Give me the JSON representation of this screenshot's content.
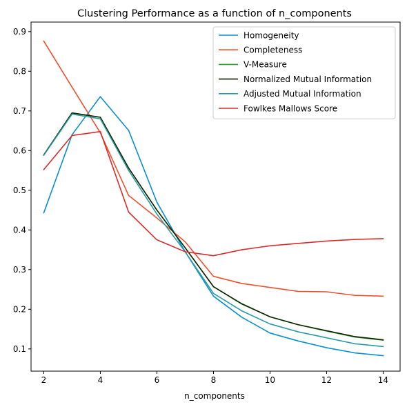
{
  "chart_data": {
    "type": "line",
    "title": "Clustering Performance as a function of n_components",
    "xlabel": "n_components",
    "ylabel": "",
    "x": [
      2,
      3,
      4,
      5,
      6,
      7,
      8,
      9,
      10,
      11,
      12,
      13,
      14
    ],
    "xlim": [
      1.55,
      14.6
    ],
    "ylim": [
      0.044,
      0.924
    ],
    "xticks": [
      2,
      4,
      6,
      8,
      10,
      12,
      14
    ],
    "yticks": [
      0.1,
      0.2,
      0.3,
      0.4,
      0.5,
      0.6,
      0.7,
      0.8,
      0.9
    ],
    "grid": false,
    "legend_position": "top-right",
    "series": [
      {
        "name": "Homogeneity",
        "color": "#0a8fd0",
        "values": [
          0.443,
          0.64,
          0.736,
          0.651,
          0.47,
          0.345,
          0.233,
          0.18,
          0.14,
          0.12,
          0.103,
          0.09,
          0.083
        ]
      },
      {
        "name": "Completeness",
        "color": "#f0502d",
        "values": [
          0.876,
          0.76,
          0.645,
          0.487,
          0.43,
          0.37,
          0.283,
          0.265,
          0.255,
          0.245,
          0.244,
          0.235,
          0.233
        ]
      },
      {
        "name": "V-Measure",
        "color": "#2ca02c",
        "values": [
          0.589,
          0.695,
          0.684,
          0.556,
          0.45,
          0.355,
          0.257,
          0.213,
          0.181,
          0.161,
          0.145,
          0.13,
          0.122
        ]
      },
      {
        "name": "Normalized Mutual Information",
        "color": "#112200",
        "values": [
          0.589,
          0.695,
          0.684,
          0.556,
          0.45,
          0.355,
          0.257,
          0.214,
          0.181,
          0.161,
          0.146,
          0.131,
          0.123
        ]
      },
      {
        "name": "Adjusted Mutual Information",
        "color": "#2a9aa6",
        "values": [
          0.588,
          0.692,
          0.68,
          0.55,
          0.44,
          0.345,
          0.24,
          0.196,
          0.163,
          0.143,
          0.128,
          0.113,
          0.106
        ]
      },
      {
        "name": "Fowlkes Mallows Score",
        "color": "#d92b2b",
        "values": [
          0.552,
          0.638,
          0.648,
          0.445,
          0.375,
          0.345,
          0.335,
          0.35,
          0.36,
          0.366,
          0.372,
          0.376,
          0.378
        ]
      }
    ]
  }
}
